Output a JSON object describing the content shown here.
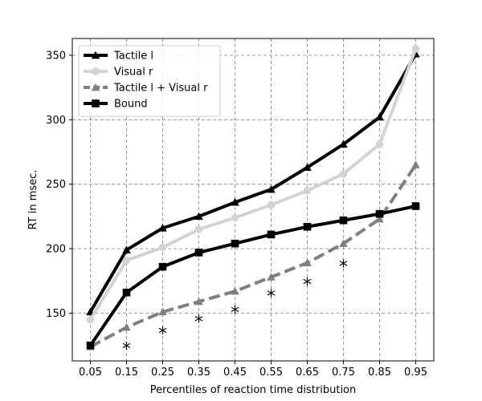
{
  "chart_data": {
    "type": "line",
    "x": [
      0.05,
      0.15,
      0.25,
      0.35,
      0.45,
      0.55,
      0.65,
      0.75,
      0.85,
      0.95
    ],
    "x_tick_labels": [
      "0.05",
      "0.15",
      "0.25",
      "0.35",
      "0.45",
      "0.55",
      "0.65",
      "0.75",
      "0.85",
      "0.95"
    ],
    "y_ticks": [
      150,
      200,
      250,
      300,
      350
    ],
    "xlim": [
      0.0,
      1.0
    ],
    "ylim": [
      113,
      363
    ],
    "xlabel": "Percentiles of reaction time distribution",
    "ylabel": "RT in msec.",
    "grid": true,
    "legend_position": "top-left",
    "series": [
      {
        "name": "Tactile l",
        "color": "#000000",
        "dash": "solid",
        "marker": "triangle",
        "values": [
          151,
          199,
          216,
          225,
          236,
          246,
          263,
          281,
          302,
          351
        ]
      },
      {
        "name": "Visual r",
        "color": "#d3d3d3",
        "dash": "solid",
        "marker": "circle",
        "values": [
          145,
          191,
          201,
          215,
          224,
          234,
          245,
          258,
          281,
          355
        ]
      },
      {
        "name": "Tactile l + Visual r",
        "color": "#808080",
        "dash": "dashed",
        "marker": "triangle",
        "values": [
          124,
          139,
          151,
          159,
          167,
          178,
          189,
          204,
          223,
          265
        ]
      },
      {
        "name": "Bound",
        "color": "#000000",
        "dash": "solid",
        "marker": "square",
        "values": [
          125,
          166,
          186,
          197,
          204,
          211,
          217,
          222,
          227,
          233
        ]
      }
    ],
    "annotations": [
      {
        "text": "*",
        "x": 0.15,
        "y": 125
      },
      {
        "text": "*",
        "x": 0.25,
        "y": 137
      },
      {
        "text": "*",
        "x": 0.35,
        "y": 146
      },
      {
        "text": "*",
        "x": 0.45,
        "y": 153
      },
      {
        "text": "*",
        "x": 0.55,
        "y": 166
      },
      {
        "text": "*",
        "x": 0.65,
        "y": 175
      },
      {
        "text": "*",
        "x": 0.75,
        "y": 189
      }
    ]
  }
}
